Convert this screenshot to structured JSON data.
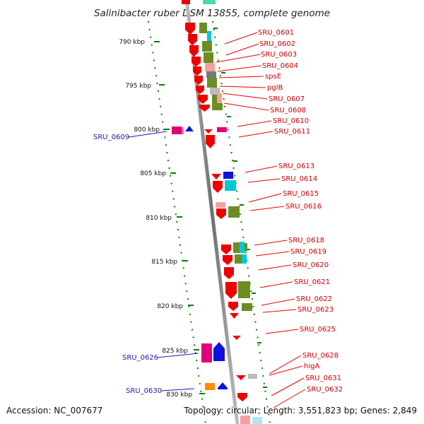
{
  "title": "Salinibacter ruber DSM 13855, complete genome",
  "footer": {
    "accession": "Accession: NC_007677",
    "topology": "Topology: circular; Length: 3,551,823 bp; Genes: 2,849"
  },
  "colors": {
    "cds_red": "#ee0000",
    "olive": "#6b8e23",
    "cyan": "#00c8d4",
    "pink": "#f4a0a0",
    "grey": "#999999",
    "magenta": "#e0007a",
    "blue": "#1010e0",
    "orange": "#ff8c00",
    "backbone": "#8c8c8c",
    "ruler": "#008000",
    "label_red": "#cc0000",
    "label_blue": "#1a1aaa"
  },
  "kbp_ticks": [
    "790 kbp",
    "795 kbp",
    "800 kbp",
    "805 kbp",
    "810 kbp",
    "815 kbp",
    "820 kbp",
    "825 kbp",
    "830 kbp"
  ],
  "right_labels": [
    "SRU_0601",
    "SRU_0602",
    "SRU_0603",
    "SRU_0604",
    "spsE",
    "pglB",
    "SRU_0607",
    "SRU_0608",
    "SRU_0610",
    "SRU_0611",
    "SRU_0613",
    "SRU_0614",
    "SRU_0615",
    "SRU_0616",
    "SRU_0618",
    "SRU_0619",
    "SRU_0620",
    "SRU_0621",
    "SRU_0622",
    "SRU_0623",
    "SRU_0625",
    "SRU_0628",
    "higA",
    "SRU_0631",
    "SRU_0632"
  ],
  "left_labels": [
    "SRU_0609",
    "SRU_0626",
    "SRU_0630"
  ]
}
